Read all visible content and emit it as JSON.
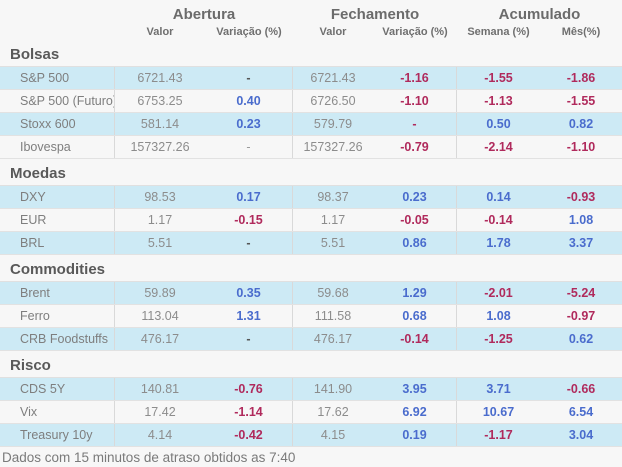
{
  "header": {
    "groups": [
      "Abertura",
      "Fechamento",
      "Acumulado"
    ],
    "subheaders": [
      "Valor",
      "Variação (%)",
      "Valor",
      "Variação (%)",
      "Semana (%)",
      "Mês(%)"
    ]
  },
  "sections": [
    {
      "id": "bolsas",
      "title": "Bolsas",
      "rows": [
        {
          "label": "S&P 500",
          "cells": [
            {
              "v": "6721.43",
              "c": "val"
            },
            {
              "v": "-",
              "c": "dash-dark"
            },
            {
              "v": "6721.43",
              "c": "val"
            },
            {
              "v": "-1.16",
              "c": "neg"
            },
            {
              "v": "-1.55",
              "c": "neg"
            },
            {
              "v": "-1.86",
              "c": "neg"
            }
          ]
        },
        {
          "label": "S&P 500 (Futuro)",
          "cells": [
            {
              "v": "6753.25",
              "c": "val"
            },
            {
              "v": "0.40",
              "c": "pos"
            },
            {
              "v": "6726.50",
              "c": "val"
            },
            {
              "v": "-1.10",
              "c": "neg"
            },
            {
              "v": "-1.13",
              "c": "neg"
            },
            {
              "v": "-1.55",
              "c": "neg"
            }
          ]
        },
        {
          "label": "Stoxx 600",
          "cells": [
            {
              "v": "581.14",
              "c": "val"
            },
            {
              "v": "0.23",
              "c": "pos"
            },
            {
              "v": "579.79",
              "c": "val"
            },
            {
              "v": "-",
              "c": "dash-red"
            },
            {
              "v": "0.50",
              "c": "pos"
            },
            {
              "v": "0.82",
              "c": "pos"
            }
          ]
        },
        {
          "label": "Ibovespa",
          "cells": [
            {
              "v": "157327.26",
              "c": "val"
            },
            {
              "v": "-",
              "c": "dash-light"
            },
            {
              "v": "157327.26",
              "c": "val"
            },
            {
              "v": "-0.79",
              "c": "neg"
            },
            {
              "v": "-2.14",
              "c": "neg"
            },
            {
              "v": "-1.10",
              "c": "neg"
            }
          ]
        }
      ]
    },
    {
      "id": "moedas",
      "title": "Moedas",
      "rows": [
        {
          "label": "DXY",
          "cells": [
            {
              "v": "98.53",
              "c": "val"
            },
            {
              "v": "0.17",
              "c": "pos"
            },
            {
              "v": "98.37",
              "c": "val"
            },
            {
              "v": "0.23",
              "c": "pos"
            },
            {
              "v": "0.14",
              "c": "pos"
            },
            {
              "v": "-0.93",
              "c": "neg"
            }
          ]
        },
        {
          "label": "EUR",
          "cells": [
            {
              "v": "1.17",
              "c": "val"
            },
            {
              "v": "-0.15",
              "c": "neg"
            },
            {
              "v": "1.17",
              "c": "val"
            },
            {
              "v": "-0.05",
              "c": "neg"
            },
            {
              "v": "-0.14",
              "c": "neg"
            },
            {
              "v": "1.08",
              "c": "pos"
            }
          ]
        },
        {
          "label": "BRL",
          "cells": [
            {
              "v": "5.51",
              "c": "val"
            },
            {
              "v": "-",
              "c": "dash-dark"
            },
            {
              "v": "5.51",
              "c": "val"
            },
            {
              "v": "0.86",
              "c": "pos"
            },
            {
              "v": "1.78",
              "c": "pos"
            },
            {
              "v": "3.37",
              "c": "pos"
            }
          ]
        }
      ]
    },
    {
      "id": "commodities",
      "title": "Commodities",
      "rows": [
        {
          "label": "Brent",
          "cells": [
            {
              "v": "59.89",
              "c": "val"
            },
            {
              "v": "0.35",
              "c": "pos"
            },
            {
              "v": "59.68",
              "c": "val"
            },
            {
              "v": "1.29",
              "c": "pos"
            },
            {
              "v": "-2.01",
              "c": "neg"
            },
            {
              "v": "-5.24",
              "c": "neg"
            }
          ]
        },
        {
          "label": "Ferro",
          "cells": [
            {
              "v": "113.04",
              "c": "val"
            },
            {
              "v": "1.31",
              "c": "pos"
            },
            {
              "v": "111.58",
              "c": "val"
            },
            {
              "v": "0.68",
              "c": "pos"
            },
            {
              "v": "1.08",
              "c": "pos"
            },
            {
              "v": "-0.97",
              "c": "neg"
            }
          ]
        },
        {
          "label": "CRB Foodstuffs",
          "cells": [
            {
              "v": "476.17",
              "c": "val"
            },
            {
              "v": "-",
              "c": "dash-dark"
            },
            {
              "v": "476.17",
              "c": "val"
            },
            {
              "v": "-0.14",
              "c": "neg"
            },
            {
              "v": "-1.25",
              "c": "neg"
            },
            {
              "v": "0.62",
              "c": "pos"
            }
          ]
        }
      ]
    },
    {
      "id": "risco",
      "title": "Risco",
      "rows": [
        {
          "label": "CDS 5Y",
          "cells": [
            {
              "v": "140.81",
              "c": "val"
            },
            {
              "v": "-0.76",
              "c": "neg"
            },
            {
              "v": "141.90",
              "c": "val"
            },
            {
              "v": "3.95",
              "c": "pos"
            },
            {
              "v": "3.71",
              "c": "pos"
            },
            {
              "v": "-0.66",
              "c": "neg"
            }
          ]
        },
        {
          "label": "Vix",
          "cells": [
            {
              "v": "17.42",
              "c": "val"
            },
            {
              "v": "-1.14",
              "c": "neg"
            },
            {
              "v": "17.62",
              "c": "val"
            },
            {
              "v": "6.92",
              "c": "pos"
            },
            {
              "v": "10.67",
              "c": "pos"
            },
            {
              "v": "6.54",
              "c": "pos"
            }
          ]
        },
        {
          "label": "Treasury 10y",
          "cells": [
            {
              "v": "4.14",
              "c": "val"
            },
            {
              "v": "-0.42",
              "c": "neg"
            },
            {
              "v": "4.15",
              "c": "val"
            },
            {
              "v": "0.19",
              "c": "pos"
            },
            {
              "v": "-1.17",
              "c": "neg"
            },
            {
              "v": "3.04",
              "c": "pos"
            }
          ]
        }
      ]
    }
  ],
  "footer": "Dados com 15 minutos de atraso obtidos as 7:40",
  "colors": {
    "positive": "#4a6ccd",
    "negative": "#b02a5c",
    "row_highlight": "#cdeaf5",
    "row_plain": "#f7f7f7",
    "value_text": "#8c8c8c",
    "header_text": "#6b6b6b"
  }
}
